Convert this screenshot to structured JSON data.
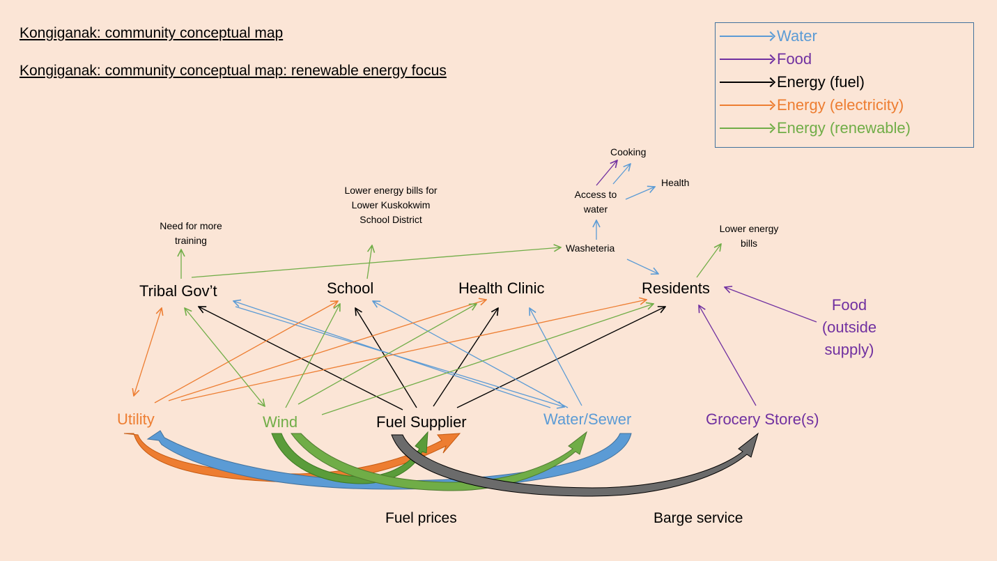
{
  "headings": [
    "Kongiganak: community conceptual map",
    "Kongiganak: community conceptual map: renewable energy focus"
  ],
  "colors": {
    "water": "#5b9bd5",
    "food": "#7030a0",
    "fuel": "#000000",
    "electricity": "#ed7d31",
    "renewable": "#70ad47",
    "background": "#fbe5d6",
    "legend_border": "#41719c",
    "big_arrow_blue": "#5b9bd5",
    "big_arrow_orange": "#ed7d31",
    "big_arrow_green": "#5a9c3a",
    "big_arrow_grey": "#6b6b6b"
  },
  "legend": [
    {
      "label": "Water",
      "color": "#5b9bd5"
    },
    {
      "label": "Food",
      "color": "#7030a0"
    },
    {
      "label": "Energy (fuel)",
      "color": "#000000"
    },
    {
      "label": "Energy (electricity)",
      "color": "#ed7d31"
    },
    {
      "label": "Energy (renewable)",
      "color": "#70ad47"
    }
  ],
  "nodes": {
    "tribal": "Tribal Gov’t",
    "school": "School",
    "clinic": "Health Clinic",
    "residents": "Residents",
    "utility": "Utility",
    "wind": "Wind",
    "fuel_supplier": "Fuel Supplier",
    "water_sewer": "Water/Sewer",
    "grocery": "Grocery Store(s)",
    "food_outside": "Food (outside supply)"
  },
  "outcomes": {
    "need_training": "Need for more training",
    "lower_school_bills": "Lower energy bills for Lower Kuskokwim School District",
    "washeteria": "Washeteria",
    "access_water": "Access to water",
    "cooking": "Cooking",
    "health": "Health",
    "lower_bills": "Lower energy bills"
  },
  "drivers": {
    "fuel_prices": "Fuel prices",
    "barge_service": "Barge service"
  }
}
